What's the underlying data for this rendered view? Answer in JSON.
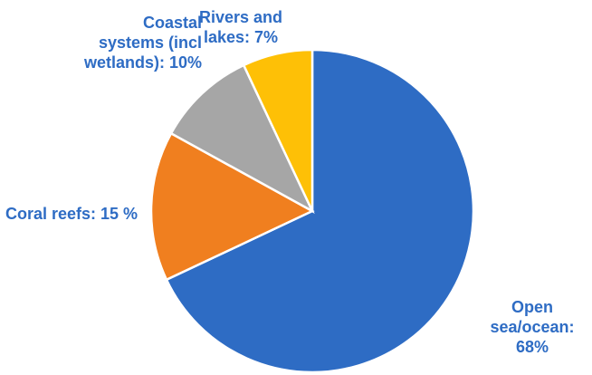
{
  "chart_data": {
    "type": "pie",
    "title": "",
    "label_color": "#2E6CC4",
    "start": "12 o'clock, clockwise",
    "slices": [
      {
        "label": "Open\nsea/ocean: 68%",
        "value": 68,
        "color": "#2E6CC4"
      },
      {
        "label": "Coral reefs: 15 %",
        "value": 15,
        "color": "#F07F1F"
      },
      {
        "label": "Coastal\nsystems (incl\nwetlands): 10%",
        "value": 10,
        "color": "#A6A6A6"
      },
      {
        "label": "Rivers and\nlakes: 7%",
        "value": 7,
        "color": "#FEC006"
      }
    ]
  }
}
